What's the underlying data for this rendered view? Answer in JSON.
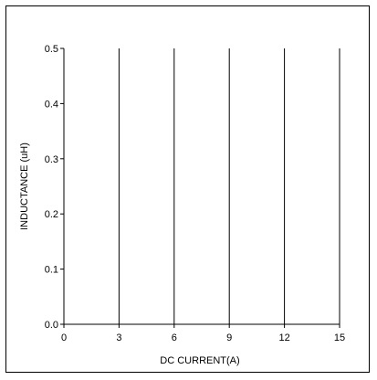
{
  "chart_data": {
    "type": "line",
    "title": "",
    "xlabel": "DC CURRENT(A)",
    "ylabel": "INDUCTANCE (uH)",
    "xlim": [
      0,
      15
    ],
    "ylim": [
      0,
      0.5
    ],
    "x_ticks": [
      "0",
      "3",
      "6",
      "9",
      "12",
      "15"
    ],
    "y_ticks": [
      "0.0",
      "0.1",
      "0.2",
      "0.3",
      "0.4",
      "0.5"
    ],
    "x_tick_values": [
      0,
      3,
      6,
      9,
      12,
      15
    ],
    "y_tick_values": [
      0,
      0.1,
      0.2,
      0.3,
      0.4,
      0.5
    ],
    "vertical_gridlines_at": [
      3,
      6,
      9,
      12,
      15
    ],
    "horizontal_gridlines": false,
    "series": [],
    "colors": {
      "axis": "#000000",
      "grid": "#000000",
      "background": "#ffffff"
    }
  }
}
